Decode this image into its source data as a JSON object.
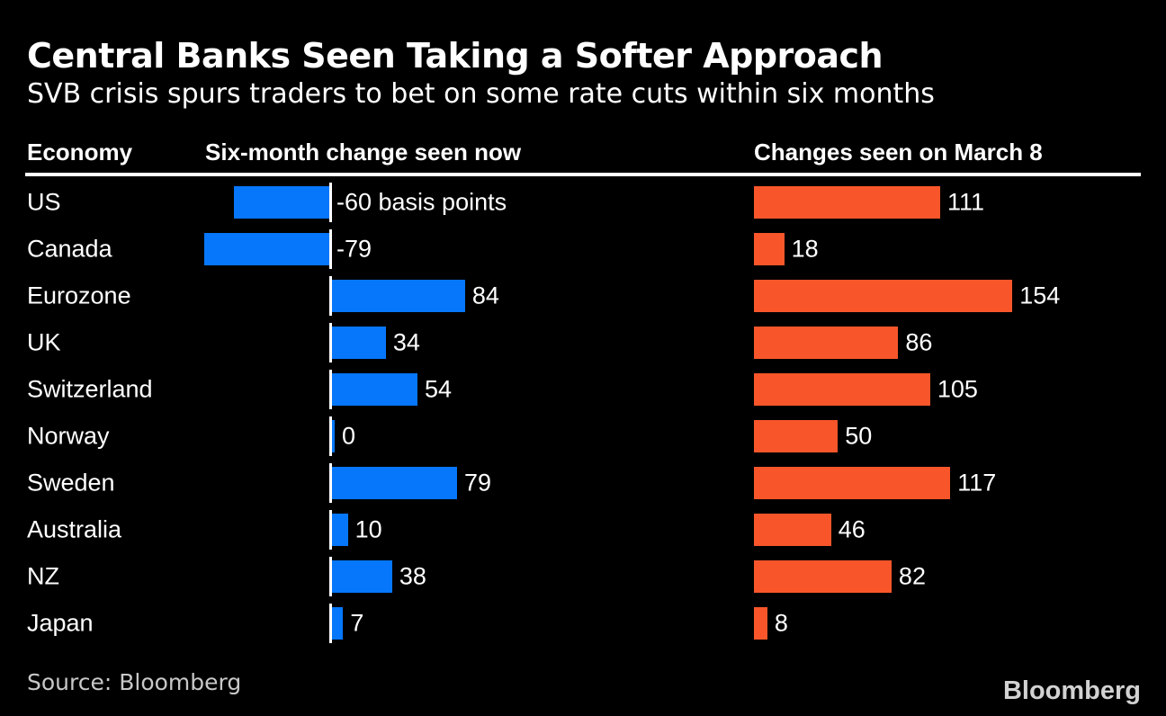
{
  "header": {
    "title": "Central Banks Seen Taking a Softer Approach",
    "subtitle": "SVB crisis spurs traders to bet on some rate cuts within six months"
  },
  "columns": {
    "economy": "Economy",
    "now": "Six-month change seen now",
    "march8": "Changes seen on March 8"
  },
  "footer": {
    "source": "Source: Bloomberg",
    "logo": "Bloomberg"
  },
  "colors": {
    "background": "#000000",
    "text": "#ffffff",
    "rule": "#ffffff",
    "now_bar": "#0677fb",
    "march8_bar": "#f8562a",
    "muted_text": "#c8c8c8",
    "logo_text": "#d2d2d2"
  },
  "chart_data": {
    "type": "bar",
    "orientation": "horizontal",
    "title": "Central Banks Seen Taking a Softer Approach",
    "subtitle": "SVB crisis spurs traders to bet on some rate cuts within six months",
    "unit": "basis points",
    "categories": [
      "US",
      "Canada",
      "Eurozone",
      "UK",
      "Switzerland",
      "Norway",
      "Sweden",
      "Australia",
      "NZ",
      "Japan"
    ],
    "series": [
      {
        "name": "Six-month change seen now",
        "color": "#0677fb",
        "values": [
          -60,
          -79,
          84,
          34,
          54,
          0,
          79,
          10,
          38,
          7
        ],
        "labels": [
          "-60 basis points",
          "-79",
          "84",
          "34",
          "54",
          "0",
          "79",
          "10",
          "38",
          "7"
        ]
      },
      {
        "name": "Changes seen on March 8",
        "color": "#f8562a",
        "values": [
          111,
          18,
          154,
          86,
          105,
          50,
          117,
          46,
          82,
          8
        ],
        "labels": [
          "111",
          "18",
          "154",
          "86",
          "105",
          "50",
          "117",
          "46",
          "82",
          "8"
        ]
      }
    ],
    "layout_hints": {
      "legend": "none",
      "grid": "off",
      "value_labels": "at bar end",
      "zero_baseline": "white tick shown per row in first series only"
    }
  }
}
